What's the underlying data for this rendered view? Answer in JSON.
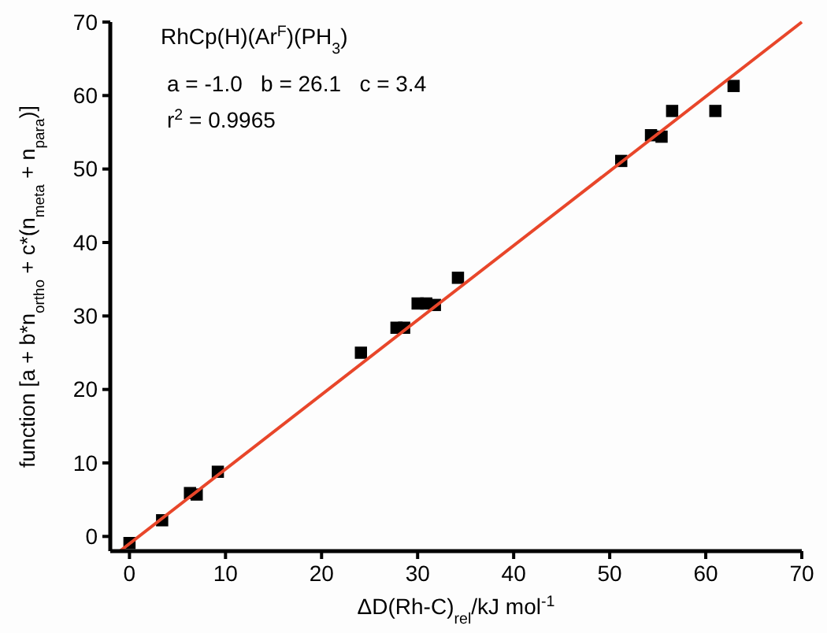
{
  "chart_data": {
    "type": "scatter",
    "title": "RhCp(H)(Ar$^{F}$)(PH$_{3}$)",
    "annotations": [
      "a = -1.0   b = 26.1   c = 3.4",
      "r$^{2}$ = 0.9965"
    ],
    "xlabel": "ΔD(Rh-C)$_{rel}$/kJ mol$^{-1}$",
    "ylabel": "function [a + b*n$_{ortho}$ + c*(n$_{meta}$ + n$_{para}$)]",
    "xlim": [
      -2,
      70
    ],
    "ylim": [
      -2,
      70
    ],
    "xticks": [
      0,
      10,
      20,
      30,
      40,
      50,
      60,
      70
    ],
    "yticks": [
      0,
      10,
      20,
      30,
      40,
      50,
      60,
      70
    ],
    "grid": false,
    "marker": "square",
    "series": [
      {
        "type": "scatter",
        "color": "#000000",
        "x": [
          0,
          3.4,
          6.3,
          7,
          9.2,
          24.1,
          27.8,
          28.6,
          30,
          30.9,
          31.8,
          34.2,
          51.2,
          54.3,
          55.4,
          56.5,
          61,
          62.9
        ],
        "values": [
          -0.9,
          2.2,
          5.9,
          5.7,
          8.8,
          25,
          28.4,
          28.4,
          31.7,
          31.7,
          31.5,
          35.2,
          51.1,
          54.6,
          54.4,
          57.9,
          57.9,
          61.3
        ]
      },
      {
        "type": "line",
        "color": "#e8462a",
        "x": [
          -1,
          70
        ],
        "values": [
          -2,
          70
        ],
        "marker": "none",
        "line_style": "solid"
      }
    ]
  }
}
